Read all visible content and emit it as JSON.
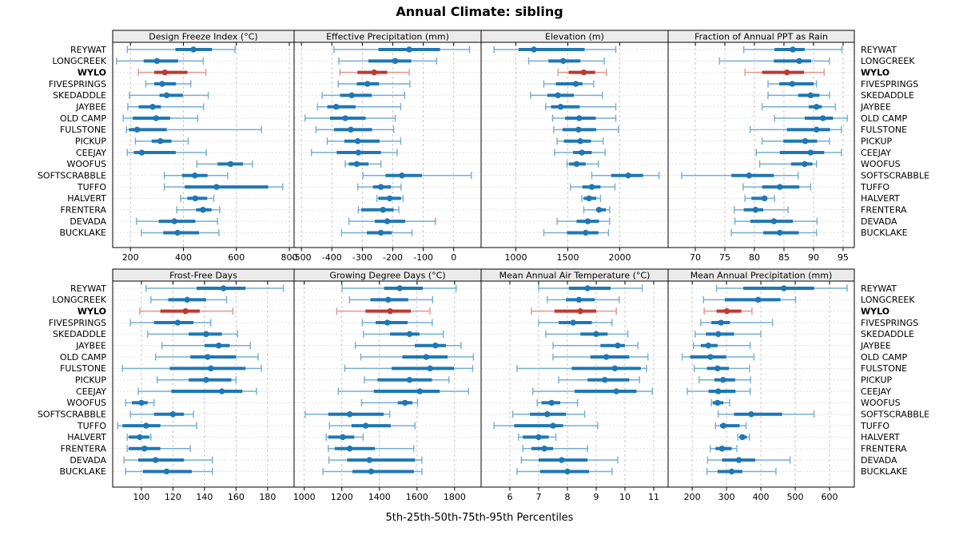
{
  "title": "Annual Climate: sibling",
  "footer": "5th-25th-50th-75th-95th Percentiles",
  "percentiles": [
    "5th",
    "25th",
    "50th",
    "75th",
    "95th"
  ],
  "highlight_site": "WYLO",
  "colors": {
    "series_blue": "#1f77b4",
    "series_blue_light": "#74add1",
    "highlight_red": "#bc3a32",
    "highlight_red_light": "#e2968f",
    "header_bg": "#ebebeb",
    "panel_border": "#000000",
    "gridline": "#c3c3c3",
    "row_guide": "#d6d6d6",
    "text": "#000000"
  },
  "sites": [
    "REYWAT",
    "LONGCREEK",
    "WYLO",
    "FIVESPRINGS",
    "SKEDADDLE",
    "JAYBEE",
    "OLD CAMP",
    "FULSTONE",
    "PICKUP",
    "CEEJAY",
    "WOOFUS",
    "SOFTSCRABBLE",
    "TUFFO",
    "HALVERT",
    "FRENTERA",
    "DEVADA",
    "BUCKLAKE"
  ],
  "chart_data": [
    {
      "type": "interval-dotplot",
      "title": "Design Freeze Index (°C)",
      "row": 0,
      "col": 0,
      "xticks": [
        200,
        400,
        600,
        800
      ],
      "xdomain": [
        133,
        818
      ],
      "series": [
        [
          188,
          370,
          438,
          508,
          595
        ],
        [
          148,
          250,
          300,
          380,
          475
        ],
        [
          230,
          290,
          330,
          415,
          485
        ],
        [
          258,
          290,
          320,
          372,
          428
        ],
        [
          196,
          310,
          337,
          398,
          494
        ],
        [
          190,
          231,
          284,
          315,
          476
        ],
        [
          173,
          209,
          297,
          350,
          454
        ],
        [
          185,
          195,
          225,
          337,
          695
        ],
        [
          219,
          280,
          313,
          355,
          418
        ],
        [
          188,
          213,
          243,
          371,
          486
        ],
        [
          451,
          529,
          578,
          625,
          661
        ],
        [
          328,
          395,
          443,
          491,
          567
        ],
        [
          328,
          405,
          525,
          720,
          775
        ],
        [
          390,
          415,
          445,
          490,
          515
        ],
        [
          375,
          448,
          474,
          506,
          537
        ],
        [
          223,
          307,
          366,
          445,
          529
        ],
        [
          241,
          324,
          378,
          459,
          534
        ]
      ]
    },
    {
      "type": "interval-dotplot",
      "title": "Effective Precipitation (mm)",
      "row": 0,
      "col": 1,
      "xticks": [
        -500,
        -400,
        -300,
        -200,
        -100,
        0
      ],
      "xdomain": [
        -524,
        90
      ],
      "series": [
        [
          -393,
          -247,
          -146,
          -45,
          52
        ],
        [
          -377,
          -280,
          -192,
          -139,
          -56
        ],
        [
          -373,
          -316,
          -261,
          -218,
          -146
        ],
        [
          -379,
          -318,
          -283,
          -245,
          -144
        ],
        [
          -432,
          -373,
          -335,
          -269,
          -161
        ],
        [
          -447,
          -415,
          -386,
          -322,
          -174
        ],
        [
          -488,
          -406,
          -356,
          -289,
          -192
        ],
        [
          -452,
          -393,
          -338,
          -268,
          -197
        ],
        [
          -415,
          -359,
          -315,
          -243,
          -174
        ],
        [
          -467,
          -384,
          -313,
          -239,
          -186
        ],
        [
          -356,
          -344,
          -318,
          -280,
          -239
        ],
        [
          -298,
          -224,
          -170,
          -104,
          58
        ],
        [
          -315,
          -265,
          -239,
          -206,
          -173
        ],
        [
          -252,
          -247,
          -210,
          -173,
          -166
        ],
        [
          -313,
          -303,
          -232,
          -197,
          -180
        ],
        [
          -344,
          -259,
          -218,
          -159,
          -60
        ],
        [
          -368,
          -285,
          -239,
          -203,
          -137
        ]
      ]
    },
    {
      "type": "interval-dotplot",
      "title": "Elevation (m)",
      "row": 0,
      "col": 2,
      "xticks": [
        1000,
        1500,
        2000
      ],
      "xdomain": [
        665,
        2466
      ],
      "series": [
        [
          790,
          1026,
          1174,
          1662,
          1962
        ],
        [
          1123,
          1313,
          1456,
          1621,
          1851
        ],
        [
          1405,
          1508,
          1654,
          1764,
          1872
        ],
        [
          1269,
          1385,
          1577,
          1641,
          1749
        ],
        [
          1141,
          1303,
          1405,
          1559,
          1833
        ],
        [
          1287,
          1338,
          1431,
          1615,
          1962
        ],
        [
          1354,
          1474,
          1610,
          1769,
          1962
        ],
        [
          1364,
          1449,
          1603,
          1774,
          1987
        ],
        [
          1397,
          1462,
          1621,
          1723,
          1841
        ],
        [
          1372,
          1551,
          1636,
          1731,
          1859
        ],
        [
          1492,
          1513,
          1585,
          1672,
          1795
        ],
        [
          1731,
          1918,
          2082,
          2226,
          2379
        ],
        [
          1526,
          1641,
          1731,
          1815,
          1954
        ],
        [
          1636,
          1654,
          1705,
          1774,
          1815
        ],
        [
          1654,
          1774,
          1800,
          1867,
          1903
        ],
        [
          1397,
          1585,
          1692,
          1800,
          1903
        ],
        [
          1269,
          1492,
          1672,
          1795,
          1892
        ]
      ]
    },
    {
      "type": "interval-dotplot",
      "title": "Fraction of Annual PPT as Rain",
      "row": 0,
      "col": 3,
      "xticks": [
        70,
        75,
        80,
        85,
        90,
        95
      ],
      "xdomain": [
        65.4,
        96.9
      ],
      "series": [
        [
          78.2,
          83.4,
          86.5,
          88.5,
          94.8
        ],
        [
          74.1,
          83.3,
          87.6,
          89.6,
          92.7
        ],
        [
          78.4,
          81.3,
          85.5,
          88.4,
          91.8
        ],
        [
          82.3,
          84.2,
          86.4,
          90.0,
          90.5
        ],
        [
          82.3,
          87.4,
          89.5,
          91.0,
          92.7
        ],
        [
          81.3,
          89.2,
          90.5,
          91.4,
          93.7
        ],
        [
          83.4,
          88.5,
          91.6,
          93.3,
          95.7
        ],
        [
          79.3,
          85.5,
          90.5,
          92.8,
          94.7
        ],
        [
          81.3,
          84.9,
          88.6,
          90.6,
          92.7
        ],
        [
          80.3,
          84.3,
          89.5,
          91.8,
          94.7
        ],
        [
          80.9,
          86.2,
          88.5,
          89.8,
          90.5
        ],
        [
          67.7,
          76.1,
          79.1,
          83.3,
          87.4
        ],
        [
          78.1,
          81.3,
          84.3,
          87.6,
          89.5
        ],
        [
          78.4,
          79.5,
          81.7,
          82.2,
          83.4
        ],
        [
          76.6,
          78.2,
          80.2,
          81.5,
          85.7
        ],
        [
          76.7,
          79.3,
          83.3,
          86.5,
          90.6
        ],
        [
          76.1,
          81.5,
          84.3,
          87.5,
          90.5
        ]
      ]
    },
    {
      "type": "interval-dotplot",
      "title": "Frost-Free Days",
      "row": 1,
      "col": 0,
      "xticks": [
        100,
        120,
        140,
        160,
        180
      ],
      "xdomain": [
        81.8,
        196.8
      ],
      "series": [
        [
          103,
          135,
          152,
          166,
          190
        ],
        [
          106,
          117,
          129,
          141,
          154
        ],
        [
          99,
          112,
          128,
          137,
          158
        ],
        [
          93,
          108,
          123,
          133,
          144
        ],
        [
          104,
          130,
          141,
          151,
          161
        ],
        [
          113,
          140,
          149,
          156,
          169
        ],
        [
          109,
          131,
          142,
          160,
          174
        ],
        [
          88,
          118,
          144,
          166,
          176
        ],
        [
          110,
          130,
          141,
          157,
          160
        ],
        [
          98,
          119,
          151,
          164,
          173
        ],
        [
          90,
          94,
          100,
          104,
          108
        ],
        [
          93,
          108,
          120,
          127,
          133
        ],
        [
          85,
          88,
          103,
          112,
          135
        ],
        [
          91,
          92,
          99,
          105,
          106
        ],
        [
          91,
          92,
          102,
          112,
          131
        ],
        [
          89,
          98,
          109,
          127,
          145
        ],
        [
          90,
          101,
          116,
          132,
          145
        ]
      ]
    },
    {
      "type": "interval-dotplot",
      "title": "Growing Degree Days (°C)",
      "row": 1,
      "col": 1,
      "xticks": [
        1000,
        1200,
        1400,
        1600,
        1800
      ],
      "xdomain": [
        946,
        1941
      ],
      "series": [
        [
          1201,
          1425,
          1508,
          1631,
          1808
        ],
        [
          1241,
          1352,
          1447,
          1553,
          1683
        ],
        [
          1173,
          1326,
          1457,
          1567,
          1669
        ],
        [
          1309,
          1380,
          1442,
          1550,
          1681
        ],
        [
          1315,
          1457,
          1560,
          1613,
          1740
        ],
        [
          1272,
          1588,
          1698,
          1754,
          1834
        ],
        [
          1301,
          1522,
          1649,
          1763,
          1900
        ],
        [
          1216,
          1465,
          1669,
          1797,
          1896
        ],
        [
          1320,
          1390,
          1560,
          1680,
          1770
        ],
        [
          1181,
          1370,
          1615,
          1721,
          1874
        ],
        [
          1305,
          1498,
          1536,
          1575,
          1603
        ],
        [
          1006,
          1128,
          1242,
          1423,
          1455
        ],
        [
          1134,
          1252,
          1327,
          1460,
          1589
        ],
        [
          1117,
          1128,
          1205,
          1266,
          1313
        ],
        [
          1128,
          1162,
          1242,
          1376,
          1583
        ],
        [
          1131,
          1228,
          1347,
          1589,
          1626
        ],
        [
          1100,
          1256,
          1356,
          1583,
          1626
        ]
      ]
    },
    {
      "type": "interval-dotplot",
      "title": "Mean Annual Air Temperature (°C)",
      "row": 1,
      "col": 2,
      "xticks": [
        6,
        7,
        8,
        9,
        10,
        11
      ],
      "xdomain": [
        5.0,
        11.5
      ],
      "series": [
        [
          7.0,
          8.05,
          8.7,
          9.5,
          10.6
        ],
        [
          7.3,
          7.95,
          8.4,
          8.95,
          9.8
        ],
        [
          6.75,
          7.55,
          8.45,
          9.0,
          9.7
        ],
        [
          7.0,
          7.7,
          8.2,
          8.85,
          9.55
        ],
        [
          7.25,
          8.45,
          9.0,
          9.4,
          10.1
        ],
        [
          7.5,
          9.15,
          9.75,
          10.0,
          10.45
        ],
        [
          7.5,
          8.8,
          9.35,
          10.15,
          10.8
        ],
        [
          6.25,
          8.15,
          9.65,
          10.55,
          10.75
        ],
        [
          7.7,
          8.7,
          9.3,
          10.15,
          10.5
        ],
        [
          6.8,
          8.25,
          9.7,
          10.4,
          10.95
        ],
        [
          6.95,
          7.1,
          7.45,
          7.75,
          8.35
        ],
        [
          6.1,
          6.7,
          7.3,
          7.95,
          8.6
        ],
        [
          5.45,
          6.15,
          7.5,
          7.85,
          9.05
        ],
        [
          6.3,
          6.45,
          7.0,
          7.35,
          7.6
        ],
        [
          6.45,
          6.75,
          7.2,
          7.5,
          8.7
        ],
        [
          6.4,
          7.0,
          7.8,
          8.7,
          9.75
        ],
        [
          6.25,
          7.05,
          8.0,
          8.75,
          9.55
        ]
      ]
    },
    {
      "type": "interval-dotplot",
      "title": "Mean Annual Precipitation (mm)",
      "row": 1,
      "col": 3,
      "xticks": [
        200,
        300,
        400,
        500,
        600
      ],
      "xdomain": [
        130,
        672
      ],
      "series": [
        [
          271,
          349,
          467,
          555,
          651
        ],
        [
          233,
          295,
          392,
          457,
          501
        ],
        [
          235,
          271,
          301,
          343,
          374
        ],
        [
          225,
          256,
          284,
          310,
          434
        ],
        [
          209,
          240,
          276,
          322,
          400
        ],
        [
          204,
          225,
          247,
          274,
          369
        ],
        [
          171,
          194,
          253,
          299,
          380
        ],
        [
          206,
          243,
          274,
          307,
          367
        ],
        [
          220,
          265,
          290,
          325,
          370
        ],
        [
          186,
          248,
          276,
          326,
          369
        ],
        [
          256,
          260,
          274,
          291,
          309
        ],
        [
          276,
          322,
          372,
          462,
          555
        ],
        [
          268,
          281,
          291,
          338,
          357
        ],
        [
          333,
          338,
          346,
          359,
          367
        ],
        [
          253,
          268,
          287,
          315,
          330
        ],
        [
          245,
          287,
          336,
          384,
          485
        ],
        [
          243,
          274,
          315,
          346,
          444
        ]
      ]
    }
  ]
}
